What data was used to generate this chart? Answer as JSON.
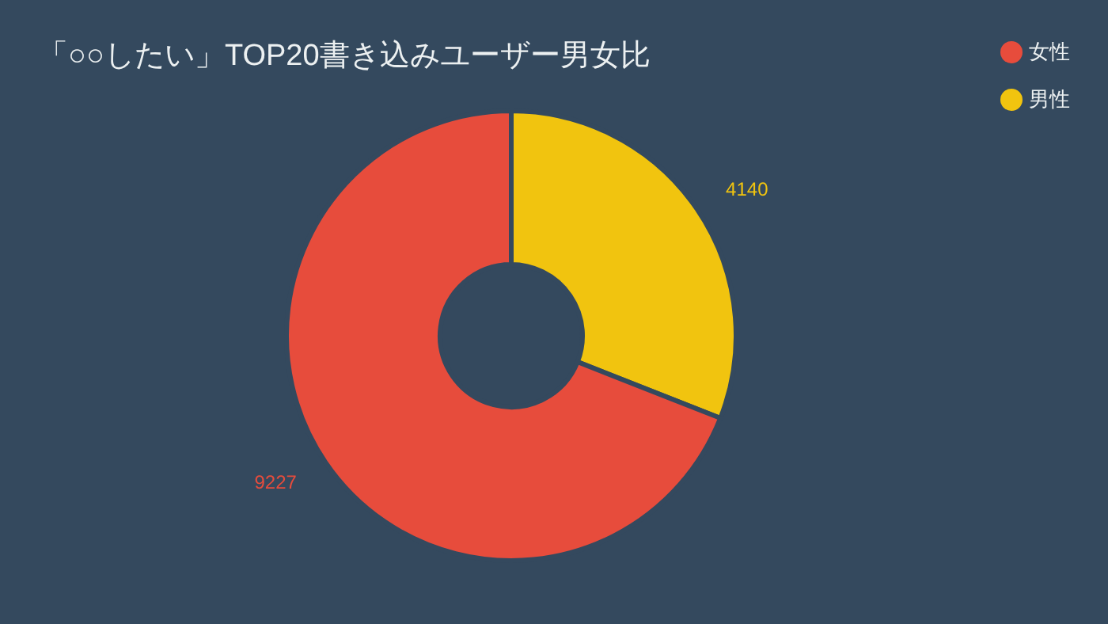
{
  "chart_data": {
    "type": "donut",
    "title": "「○○したい」TOP20書き込みユーザー男女比",
    "categories": [
      "男性",
      "女性"
    ],
    "values": [
      4140,
      9227
    ],
    "colors": [
      "#f1c40f",
      "#e74c3c"
    ],
    "legend": "top right",
    "data_labels": true
  }
}
